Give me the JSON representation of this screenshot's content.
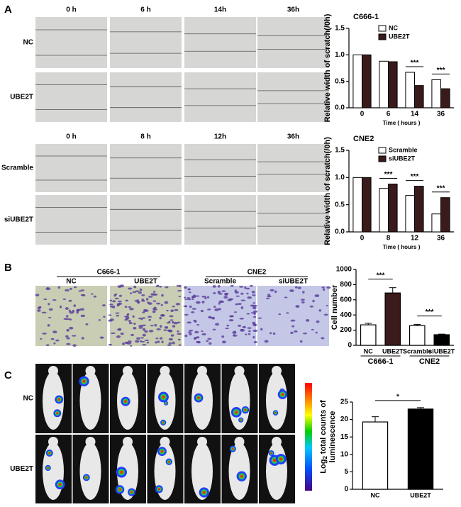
{
  "panel_a": {
    "label": "A",
    "blocks": [
      {
        "columns": [
          "0 h",
          "6 h",
          "14h",
          "36h"
        ],
        "rows": [
          "NC",
          "UBE2T"
        ]
      },
      {
        "columns": [
          "0 h",
          "8 h",
          "12h",
          "36h"
        ],
        "rows": [
          "Scramble",
          "siUBE2T"
        ]
      }
    ]
  },
  "panel_b": {
    "label": "B",
    "groups": [
      {
        "name": "C666-1",
        "columns": [
          "NC",
          "UBE2T"
        ]
      },
      {
        "name": "CNE2",
        "columns": [
          "Scramble",
          "siUBE2T"
        ]
      }
    ]
  },
  "panel_c": {
    "label": "C",
    "rows": [
      "NC",
      "UBE2T"
    ],
    "colorbar_label": [
      "Log",
      "2",
      "total counts of",
      "luminescence"
    ]
  },
  "chart_data": [
    {
      "type": "bar",
      "title": "C666-1",
      "ylabel": "Relative width of scratch(/0h)",
      "xlabel": "Time ( hours )",
      "categories": [
        "0",
        "6",
        "14",
        "36"
      ],
      "series": [
        {
          "name": "NC",
          "color": "#ffffff",
          "values": [
            1.0,
            0.88,
            0.67,
            0.53
          ]
        },
        {
          "name": "UBE2T",
          "color": "#3a1a1a",
          "values": [
            1.0,
            0.87,
            0.42,
            0.36
          ]
        }
      ],
      "annotations": [
        null,
        null,
        "***",
        "***"
      ],
      "ylim": [
        0,
        1.5
      ],
      "yticks": [
        {
          "value": 0,
          "label": "0.0"
        },
        0.5,
        {
          "value": 1,
          "label": "1.0"
        },
        {
          "value": 1.5,
          "label": "1.5"
        }
      ]
    },
    {
      "type": "bar",
      "title": "CNE2",
      "ylabel": "Relative width of scratch(/0h)",
      "xlabel": "Time ( hours )",
      "categories": [
        "0",
        "8",
        "12",
        "36"
      ],
      "series": [
        {
          "name": "Scramble",
          "color": "#ffffff",
          "values": [
            1.0,
            0.8,
            0.67,
            0.33
          ]
        },
        {
          "name": "siUBE2T",
          "color": "#3a1a1a",
          "values": [
            1.0,
            0.88,
            0.84,
            0.63
          ]
        }
      ],
      "annotations": [
        null,
        "***",
        "***",
        "***"
      ],
      "ylim": [
        0,
        1.5
      ],
      "yticks": [
        {
          "value": 0,
          "label": "0.0"
        },
        0.5,
        {
          "value": 1,
          "label": "1.0"
        },
        {
          "value": 1.5,
          "label": "1.5"
        }
      ]
    },
    {
      "type": "bar",
      "ylabel": "Cell number",
      "categories": [
        "NC",
        "UBE2T",
        "Scramble",
        "siUBE2T"
      ],
      "groups": [
        "C666-1",
        "CNE2"
      ],
      "group_annotations": [
        "***",
        "***"
      ],
      "values": [
        270,
        690,
        260,
        140
      ],
      "errors": [
        20,
        70,
        15,
        8
      ],
      "colors": [
        "#ffffff",
        "#3a1a1a",
        "#ffffff",
        "#000000"
      ],
      "ylim": [
        0,
        1000
      ],
      "yticks": [
        0,
        200,
        400,
        600,
        800,
        1000
      ]
    },
    {
      "type": "bar",
      "categories": [
        "NC",
        "UBE2T"
      ],
      "values": [
        19.3,
        23.0
      ],
      "errors": [
        1.5,
        0.4
      ],
      "colors": [
        "#ffffff",
        "#000000"
      ],
      "annotation": "*",
      "ylim": [
        0,
        25
      ],
      "yticks": [
        0,
        5,
        10,
        15,
        20,
        25
      ]
    }
  ]
}
